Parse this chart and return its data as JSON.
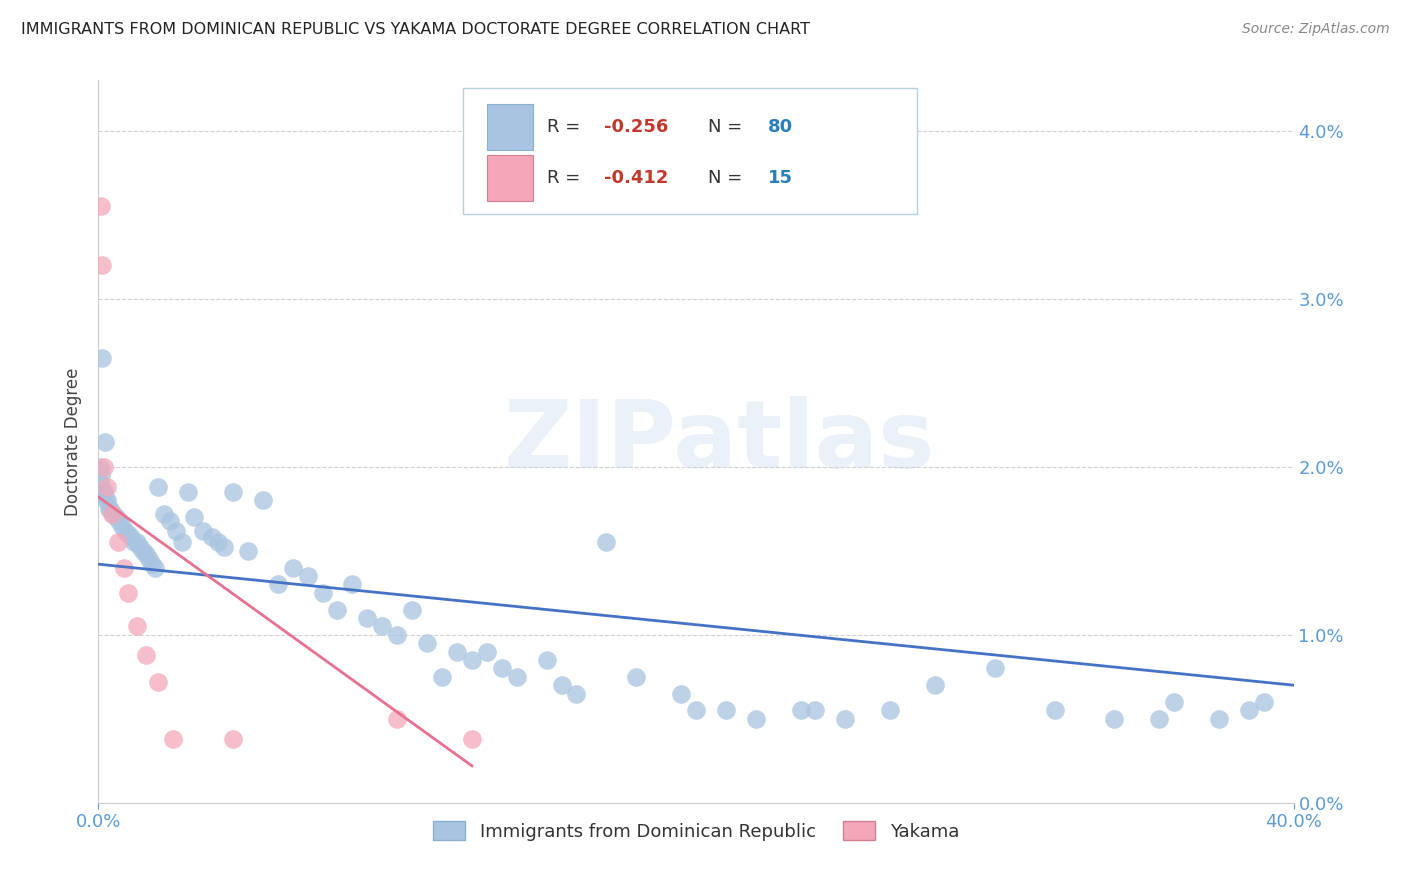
{
  "title": "IMMIGRANTS FROM DOMINICAN REPUBLIC VS YAKAMA DOCTORATE DEGREE CORRELATION CHART",
  "source": "Source: ZipAtlas.com",
  "ylabel": "Doctorate Degree",
  "ytick_values": [
    0.0,
    1.0,
    2.0,
    3.0,
    4.0
  ],
  "xlim": [
    0.0,
    40.0
  ],
  "ylim": [
    0.0,
    4.3
  ],
  "blue_scatter_x": [
    0.05,
    0.08,
    0.1,
    0.15,
    0.18,
    0.2,
    0.25,
    0.3,
    0.35,
    0.4,
    0.5,
    0.6,
    0.7,
    0.8,
    0.9,
    1.0,
    1.1,
    1.2,
    1.3,
    1.4,
    1.5,
    1.6,
    1.7,
    1.8,
    1.9,
    2.0,
    2.2,
    2.4,
    2.6,
    2.8,
    3.0,
    3.2,
    3.5,
    3.8,
    4.0,
    4.2,
    4.5,
    5.0,
    5.5,
    6.0,
    6.5,
    7.0,
    7.5,
    8.0,
    8.5,
    9.0,
    9.5,
    10.0,
    10.5,
    11.0,
    11.5,
    12.0,
    12.5,
    13.0,
    13.5,
    14.0,
    15.0,
    15.5,
    16.0,
    17.0,
    18.0,
    19.5,
    20.0,
    21.0,
    22.0,
    23.5,
    24.0,
    25.0,
    26.5,
    28.0,
    30.0,
    32.0,
    34.0,
    35.5,
    36.0,
    37.5,
    38.5,
    39.0,
    0.12,
    0.22
  ],
  "blue_scatter_y": [
    2.0,
    1.95,
    1.9,
    1.85,
    1.85,
    1.85,
    1.8,
    1.8,
    1.75,
    1.75,
    1.72,
    1.7,
    1.68,
    1.65,
    1.62,
    1.6,
    1.58,
    1.55,
    1.55,
    1.52,
    1.5,
    1.48,
    1.45,
    1.42,
    1.4,
    1.88,
    1.72,
    1.68,
    1.62,
    1.55,
    1.85,
    1.7,
    1.62,
    1.58,
    1.55,
    1.52,
    1.85,
    1.5,
    1.8,
    1.3,
    1.4,
    1.35,
    1.25,
    1.15,
    1.3,
    1.1,
    1.05,
    1.0,
    1.15,
    0.95,
    0.75,
    0.9,
    0.85,
    0.9,
    0.8,
    0.75,
    0.85,
    0.7,
    0.65,
    1.55,
    0.75,
    0.65,
    0.55,
    0.55,
    0.5,
    0.55,
    0.55,
    0.5,
    0.55,
    0.7,
    0.8,
    0.55,
    0.5,
    0.5,
    0.6,
    0.5,
    0.55,
    0.6,
    2.65,
    2.15
  ],
  "pink_scatter_x": [
    0.08,
    0.12,
    0.2,
    0.28,
    0.45,
    0.65,
    0.85,
    1.0,
    1.3,
    1.6,
    2.0,
    2.5,
    4.5,
    10.0,
    12.5
  ],
  "pink_scatter_y": [
    3.55,
    3.2,
    2.0,
    1.88,
    1.72,
    1.55,
    1.4,
    1.25,
    1.05,
    0.88,
    0.72,
    0.38,
    0.38,
    0.5,
    0.38
  ],
  "blue_line_x0": 0.0,
  "blue_line_x1": 40.0,
  "blue_line_y0": 1.42,
  "blue_line_y1": 0.7,
  "pink_line_x0": 0.0,
  "pink_line_x1": 12.5,
  "pink_line_y0": 1.82,
  "pink_line_y1": 0.22,
  "watermark": "ZIPatlas",
  "title_color": "#222222",
  "tick_color": "#5b9bd5",
  "grid_color": "#d0d0d0",
  "blue_color": "#a8c4e0",
  "pink_color": "#f4a7b9",
  "blue_line_color": "#4472c4",
  "pink_line_color": "#e87090",
  "legend_R_color": "#c0392b",
  "legend_N_color": "#2980b9",
  "background_color": "#ffffff",
  "legend_entry1_label": "Immigrants from Dominican Republic",
  "legend_entry2_label": "Yakama",
  "legend_R1": "-0.256",
  "legend_N1": "80",
  "legend_R2": "-0.412",
  "legend_N2": "15"
}
